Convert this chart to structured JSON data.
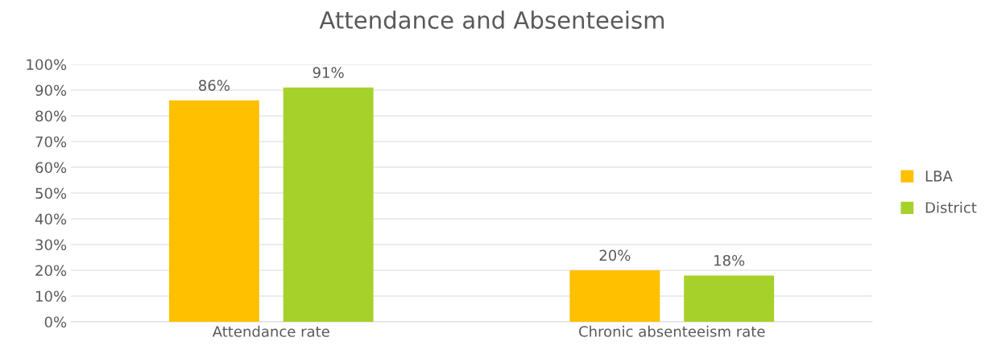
{
  "chart_data": {
    "type": "bar",
    "title": "Attendance and Absenteeism",
    "categories": [
      "Attendance rate",
      "Chronic absenteeism rate"
    ],
    "series": [
      {
        "name": "LBA",
        "color": "#ffc000",
        "values": [
          86,
          20
        ],
        "value_labels": [
          "86%",
          "20%"
        ]
      },
      {
        "name": "District",
        "color": "#a5d12a",
        "values": [
          91,
          18
        ],
        "value_labels": [
          "91%",
          "18%"
        ]
      }
    ],
    "ylim": [
      0,
      100
    ],
    "yticks": [
      {
        "value": 0,
        "label": "0%"
      },
      {
        "value": 10,
        "label": "10%"
      },
      {
        "value": 20,
        "label": "20%"
      },
      {
        "value": 30,
        "label": "30%"
      },
      {
        "value": 40,
        "label": "40%"
      },
      {
        "value": 50,
        "label": "50%"
      },
      {
        "value": 60,
        "label": "60%"
      },
      {
        "value": 70,
        "label": "70%"
      },
      {
        "value": 80,
        "label": "80%"
      },
      {
        "value": 90,
        "label": "90%"
      },
      {
        "value": 100,
        "label": "100%"
      }
    ],
    "grid": "y",
    "legend": "right"
  }
}
